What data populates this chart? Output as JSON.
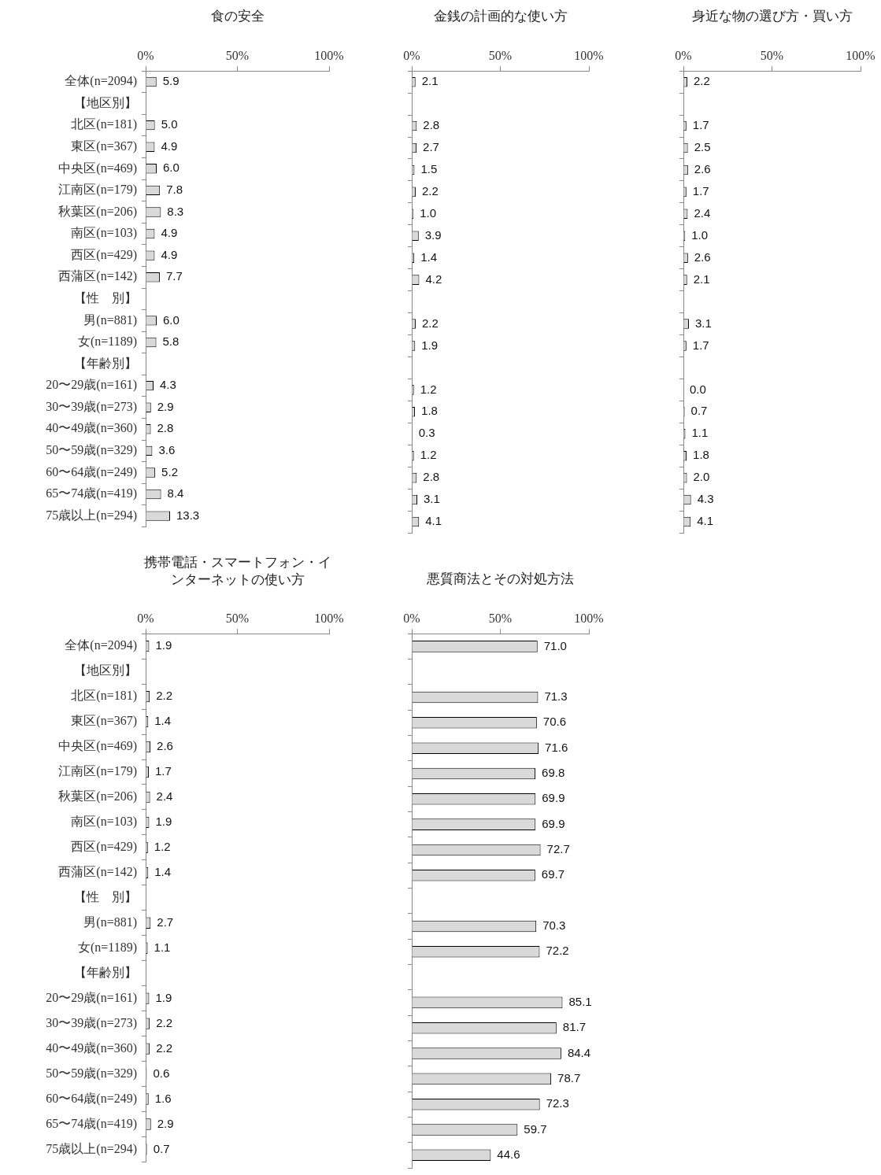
{
  "chart_data": [
    {
      "type": "bar",
      "orientation": "horizontal",
      "title": "食の安全",
      "categories": [
        "全体(n=2094)",
        "【地区別】",
        "北区(n=181)",
        "東区(n=367)",
        "中央区(n=469)",
        "江南区(n=179)",
        "秋葉区(n=206)",
        "南区(n=103)",
        "西区(n=429)",
        "西蒲区(n=142)",
        "【性　別】",
        "男(n=881)",
        "女(n=1189)",
        "【年齢別】",
        "20〜29歳(n=161)",
        "30〜39歳(n=273)",
        "40〜49歳(n=360)",
        "50〜59歳(n=329)",
        "60〜64歳(n=249)",
        "65〜74歳(n=419)",
        "75歳以上(n=294)"
      ],
      "values": [
        5.9,
        null,
        5.0,
        4.9,
        6.0,
        7.8,
        8.3,
        4.9,
        4.9,
        7.7,
        null,
        6.0,
        5.8,
        null,
        4.3,
        2.9,
        2.8,
        3.6,
        5.2,
        8.4,
        13.3
      ],
      "value_labels": [
        "5.9",
        null,
        "5.0",
        "4.9",
        "6.0",
        "7.8",
        "8.3",
        "4.9",
        "4.9",
        "7.7",
        null,
        "6.0",
        "5.8",
        null,
        "4.3",
        "2.9",
        "2.8",
        "3.6",
        "5.2",
        "8.4",
        "13.3"
      ],
      "color": "#d9d9d9",
      "xlim": [
        0,
        100
      ],
      "xticks": [
        {
          "value": 0,
          "label": "0%"
        },
        {
          "value": 50,
          "label": "50%"
        },
        {
          "value": 100,
          "label": "100%"
        }
      ],
      "grid": false,
      "legend": false
    },
    {
      "type": "bar",
      "orientation": "horizontal",
      "title": "金銭の計画的な使い方",
      "categories": [
        null,
        null,
        null,
        null,
        null,
        null,
        null,
        null,
        null,
        null,
        null,
        null,
        null,
        null,
        null,
        null,
        null,
        null,
        null,
        null,
        null
      ],
      "values": [
        2.1,
        null,
        2.8,
        2.7,
        1.5,
        2.2,
        1.0,
        3.9,
        1.4,
        4.2,
        null,
        2.2,
        1.9,
        null,
        1.2,
        1.8,
        0.3,
        1.2,
        2.8,
        3.1,
        4.1
      ],
      "value_labels": [
        "2.1",
        null,
        "2.8",
        "2.7",
        "1.5",
        "2.2",
        "1.0",
        "3.9",
        "1.4",
        "4.2",
        null,
        "2.2",
        "1.9",
        null,
        "1.2",
        "1.8",
        "0.3",
        "1.2",
        "2.8",
        "3.1",
        "4.1"
      ],
      "color": "#d9d9d9",
      "xlim": [
        0,
        100
      ],
      "xticks": [
        {
          "value": 0,
          "label": "0%"
        },
        {
          "value": 50,
          "label": "50%"
        },
        {
          "value": 100,
          "label": "100%"
        }
      ],
      "grid": false,
      "legend": false,
      "tick_labels": "x"
    },
    {
      "type": "bar",
      "orientation": "horizontal",
      "title": "身近な物の選び方・買い方",
      "categories": [
        null,
        null,
        null,
        null,
        null,
        null,
        null,
        null,
        null,
        null,
        null,
        null,
        null,
        null,
        null,
        null,
        null,
        null,
        null,
        null,
        null
      ],
      "values": [
        2.2,
        null,
        1.7,
        2.5,
        2.6,
        1.7,
        2.4,
        1.0,
        2.6,
        2.1,
        null,
        3.1,
        1.7,
        null,
        0.0,
        0.7,
        1.1,
        1.8,
        2.0,
        4.3,
        4.1
      ],
      "value_labels": [
        "2.2",
        null,
        "1.7",
        "2.5",
        "2.6",
        "1.7",
        "2.4",
        "1.0",
        "2.6",
        "2.1",
        null,
        "3.1",
        "1.7",
        null,
        "0.0",
        "0.7",
        "1.1",
        "1.8",
        "2.0",
        "4.3",
        "4.1"
      ],
      "color": "#d9d9d9",
      "xlim": [
        0,
        100
      ],
      "xticks": [
        {
          "value": 0,
          "label": "0%"
        },
        {
          "value": 50,
          "label": "50%"
        },
        {
          "value": 100,
          "label": "100%"
        }
      ],
      "grid": false,
      "legend": false,
      "tick_labels": "x"
    },
    {
      "type": "bar",
      "orientation": "horizontal",
      "title": "携帯電話・スマートフォン・インターネットの使い方",
      "categories": [
        "全体(n=2094)",
        "【地区別】",
        "北区(n=181)",
        "東区(n=367)",
        "中央区(n=469)",
        "江南区(n=179)",
        "秋葉区(n=206)",
        "南区(n=103)",
        "西区(n=429)",
        "西蒲区(n=142)",
        "【性　別】",
        "男(n=881)",
        "女(n=1189)",
        "【年齢別】",
        "20〜29歳(n=161)",
        "30〜39歳(n=273)",
        "40〜49歳(n=360)",
        "50〜59歳(n=329)",
        "60〜64歳(n=249)",
        "65〜74歳(n=419)",
        "75歳以上(n=294)"
      ],
      "values": [
        1.9,
        null,
        2.2,
        1.4,
        2.6,
        1.7,
        2.4,
        1.9,
        1.2,
        1.4,
        null,
        2.7,
        1.1,
        null,
        1.9,
        2.2,
        2.2,
        0.6,
        1.6,
        2.9,
        0.7
      ],
      "value_labels": [
        "1.9",
        null,
        "2.2",
        "1.4",
        "2.6",
        "1.7",
        "2.4",
        "1.9",
        "1.2",
        "1.4",
        null,
        "2.7",
        "1.1",
        null,
        "1.9",
        "2.2",
        "2.2",
        "0.6",
        "1.6",
        "2.9",
        "0.7"
      ],
      "color": "#d9d9d9",
      "xlim": [
        0,
        100
      ],
      "xticks": [
        {
          "value": 0,
          "label": "0%"
        },
        {
          "value": 50,
          "label": "50%"
        },
        {
          "value": 100,
          "label": "100%"
        }
      ],
      "grid": false,
      "legend": false
    },
    {
      "type": "bar",
      "orientation": "horizontal",
      "title": "悪質商法とその対処方法",
      "categories": [
        null,
        null,
        null,
        null,
        null,
        null,
        null,
        null,
        null,
        null,
        null,
        null,
        null,
        null,
        null,
        null,
        null,
        null,
        null,
        null,
        null
      ],
      "values": [
        71.0,
        null,
        71.3,
        70.6,
        71.6,
        69.8,
        69.9,
        69.9,
        72.7,
        69.7,
        null,
        70.3,
        72.2,
        null,
        85.1,
        81.7,
        84.4,
        78.7,
        72.3,
        59.7,
        44.6
      ],
      "value_labels": [
        "71.0",
        null,
        "71.3",
        "70.6",
        "71.6",
        "69.8",
        "69.9",
        "69.9",
        "72.7",
        "69.7",
        null,
        "70.3",
        "72.2",
        null,
        "85.1",
        "81.7",
        "84.4",
        "78.7",
        "72.3",
        "59.7",
        "44.6"
      ],
      "color": "#d9d9d9",
      "xlim": [
        0,
        100
      ],
      "xticks": [
        {
          "value": 0,
          "label": "0%"
        },
        {
          "value": 50,
          "label": "50%"
        },
        {
          "value": 100,
          "label": "100%"
        }
      ],
      "grid": false,
      "legend": false,
      "tick_labels": "x"
    }
  ]
}
